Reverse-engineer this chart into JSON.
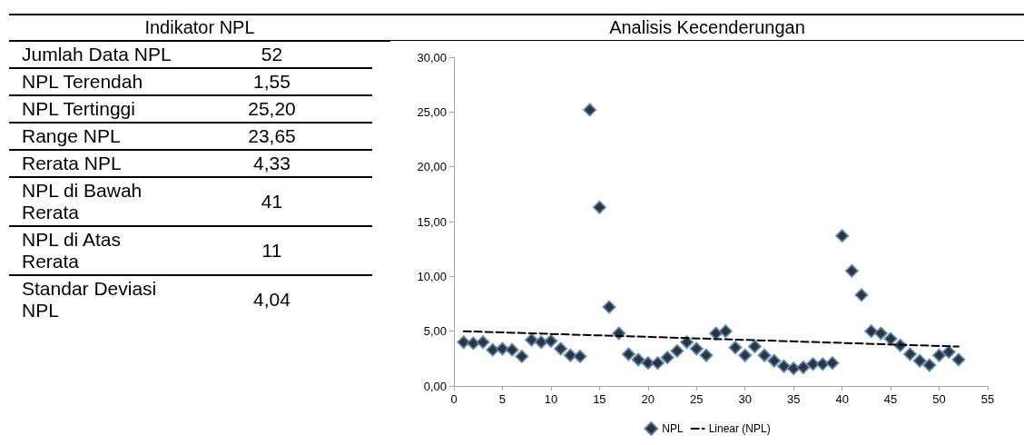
{
  "chart_data": [
    {
      "type": "other",
      "title": "Indikator NPL",
      "categories": [
        "Jumlah Data NPL",
        "NPL Terendah",
        "NPL Tertinggi",
        "Range NPL",
        "Rerata NPL",
        "NPL di Bawah Rerata",
        "NPL di Atas Rerata",
        "Standar Deviasi NPL"
      ],
      "value_labels": [
        "52",
        "1,55",
        "25,20",
        "23,65",
        "4,33",
        "41",
        "11",
        "4,04"
      ]
    },
    {
      "type": "scatter",
      "title": "Analisis Kecenderungan",
      "legend": "bottom",
      "grid": false,
      "x": [
        1,
        2,
        3,
        4,
        5,
        6,
        7,
        8,
        9,
        10,
        11,
        12,
        13,
        14,
        15,
        16,
        17,
        18,
        19,
        20,
        21,
        22,
        23,
        24,
        25,
        26,
        27,
        28,
        29,
        30,
        31,
        32,
        33,
        34,
        35,
        36,
        37,
        38,
        39,
        40,
        41,
        42,
        43,
        44,
        45,
        46,
        47,
        48,
        49,
        50,
        51,
        52
      ],
      "xlim": [
        0,
        55
      ],
      "xticks": [
        0,
        5,
        10,
        15,
        20,
        25,
        30,
        35,
        40,
        45,
        50,
        55
      ],
      "ylim": [
        0,
        30
      ],
      "yticks": [
        {
          "value": 0,
          "label": "0,00"
        },
        {
          "value": 5,
          "label": "5,00"
        },
        {
          "value": 10,
          "label": "10,00"
        },
        {
          "value": 15,
          "label": "15,00"
        },
        {
          "value": 20,
          "label": "20,00"
        },
        {
          "value": 25,
          "label": "25,00"
        },
        {
          "value": 30,
          "label": "30,00"
        }
      ],
      "series": [
        {
          "name": "NPL",
          "color": "#000000",
          "marker": "diamond",
          "values": [
            4.0,
            3.9,
            4.0,
            3.3,
            3.4,
            3.3,
            2.7,
            4.2,
            4.0,
            4.1,
            3.4,
            2.8,
            2.7,
            25.2,
            16.3,
            7.2,
            4.8,
            2.9,
            2.4,
            2.1,
            2.1,
            2.6,
            3.2,
            4.0,
            3.4,
            2.8,
            4.8,
            5.0,
            3.5,
            2.8,
            3.6,
            2.8,
            2.3,
            1.8,
            1.6,
            1.7,
            2.0,
            2.0,
            2.1,
            13.7,
            10.5,
            8.3,
            5.0,
            4.8,
            4.3,
            3.7,
            2.9,
            2.3,
            1.9,
            2.8,
            3.1,
            2.4
          ]
        },
        {
          "name": "Linear (NPL)",
          "type": "line",
          "color": "#000000",
          "marker": "none",
          "line_style": "dashed",
          "x": [
            1,
            52
          ],
          "values": [
            5.0,
            3.6
          ]
        }
      ]
    }
  ]
}
